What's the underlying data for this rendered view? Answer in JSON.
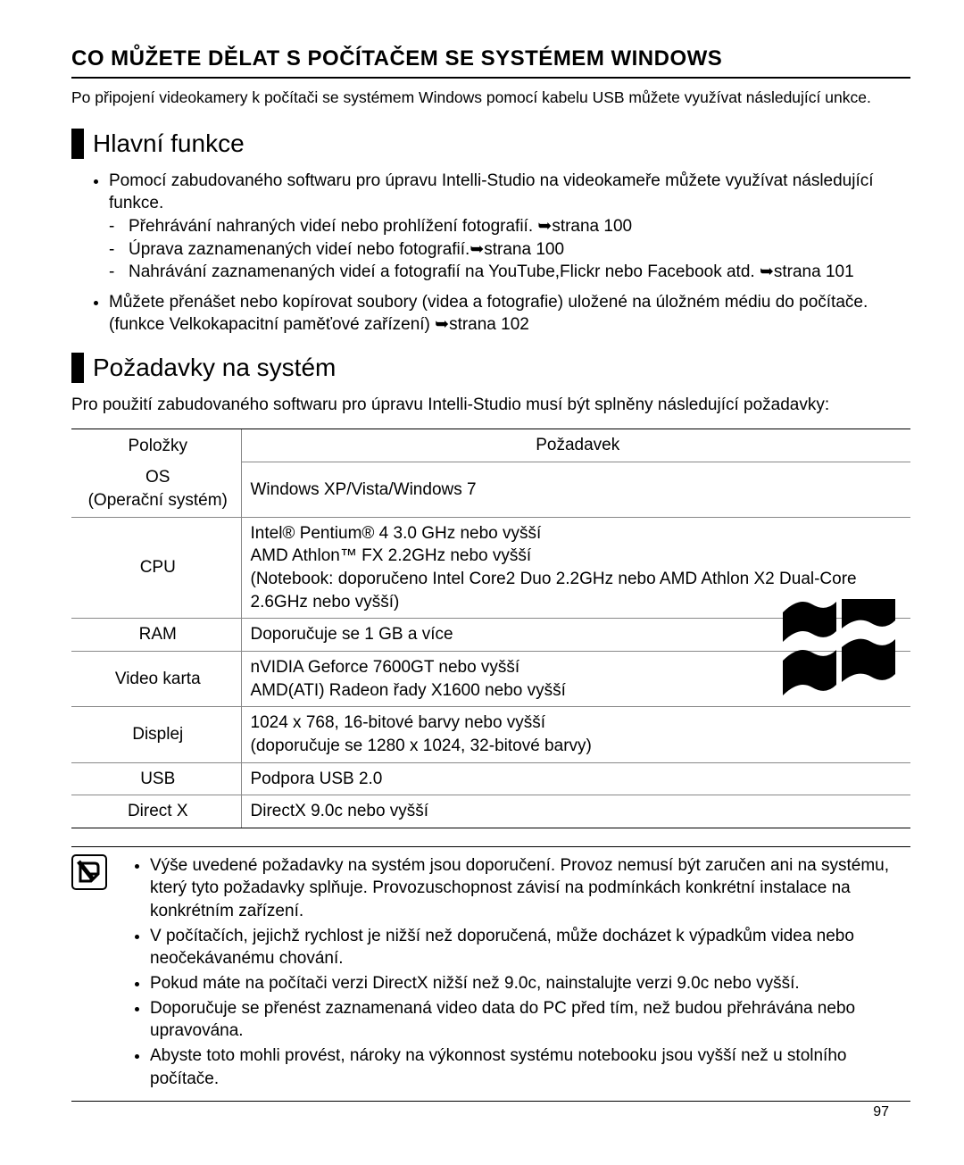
{
  "page_number": "97",
  "heading": "CO MŮŽETE DĚLAT S POČÍTAČEM SE SYSTÉMEM WINDOWS",
  "intro": "Po připojení videokamery k počítači se systémem Windows pomocí kabelu USB můžete využívat následující unkce.",
  "section1": {
    "title": "Hlavní funkce",
    "bullet1": "Pomocí zabudovaného softwaru pro úpravu Intelli-Studio na videokameře můžete využívat následující funkce.",
    "sub1": "Přehrávání nahraných videí nebo prohlížení fotografií. ➥strana 100",
    "sub2": "Úprava zaznamenaných videí nebo fotografií.➥strana 100",
    "sub3": "Nahrávání zaznamenaných videí a fotografií na YouTube,Flickr nebo Facebook atd. ➥strana 101",
    "bullet2": "Můžete přenášet nebo kopírovat soubory (videa a fotografie) uložené na úložném médiu do počítače. (funkce Velkokapacitní paměťové zařízení) ➥strana 102"
  },
  "section2": {
    "title": "Požadavky na systém",
    "intro": "Pro použití zabudovaného softwaru pro úpravu Intelli-Studio musí být splněny následující požadavky:",
    "table": {
      "header_col1": "Položky",
      "header_col2": "Požadavek",
      "rows": [
        {
          "label": "OS\n(Operační systém)",
          "value": "Windows XP/Vista/Windows 7"
        },
        {
          "label": "CPU",
          "value": "Intel® Pentium® 4 3.0 GHz nebo vyšší\nAMD Athlon™ FX 2.2GHz nebo vyšší\n(Notebook: doporučeno Intel Core2 Duo 2.2GHz nebo AMD Athlon X2 Dual-Core 2.6GHz nebo vyšší)"
        },
        {
          "label": "RAM",
          "value": "Doporučuje se 1 GB a více"
        },
        {
          "label": "Video karta",
          "value": "nVIDIA Geforce 7600GT nebo vyšší\nAMD(ATI) Radeon řady X1600 nebo vyšší"
        },
        {
          "label": "Displej",
          "value": "1024 x 768, 16-bitové barvy nebo vyšší\n(doporučuje se 1280 x 1024, 32-bitové barvy)"
        },
        {
          "label": "USB",
          "value": "Podpora USB 2.0"
        },
        {
          "label": "Direct X",
          "value": "DirectX 9.0c nebo vyšší"
        }
      ]
    }
  },
  "notes": [
    "Výše uvedené požadavky na systém jsou doporučení. Provoz nemusí být zaručen ani na systému, který tyto požadavky splňuje. Provozuschopnost závisí na podmínkách konkrétní instalace na konkrétním zařízení.",
    "V počítačích, jejichž rychlost je nižší než doporučená, může docházet k výpadkům videa nebo neočekávanému chování.",
    "Pokud máte na počítači verzi DirectX nižší než 9.0c, nainstalujte verzi 9.0c nebo vyšší.",
    "Doporučuje se přenést zaznamenaná video data do PC před tím, než budou přehrávána nebo upravována.",
    "Abyste toto mohli provést, nároky na výkonnost systému notebooku jsou vyšší než u stolního počítače."
  ],
  "colors": {
    "text": "#000000",
    "border": "#000000",
    "table_line": "#888888",
    "background": "#ffffff"
  }
}
